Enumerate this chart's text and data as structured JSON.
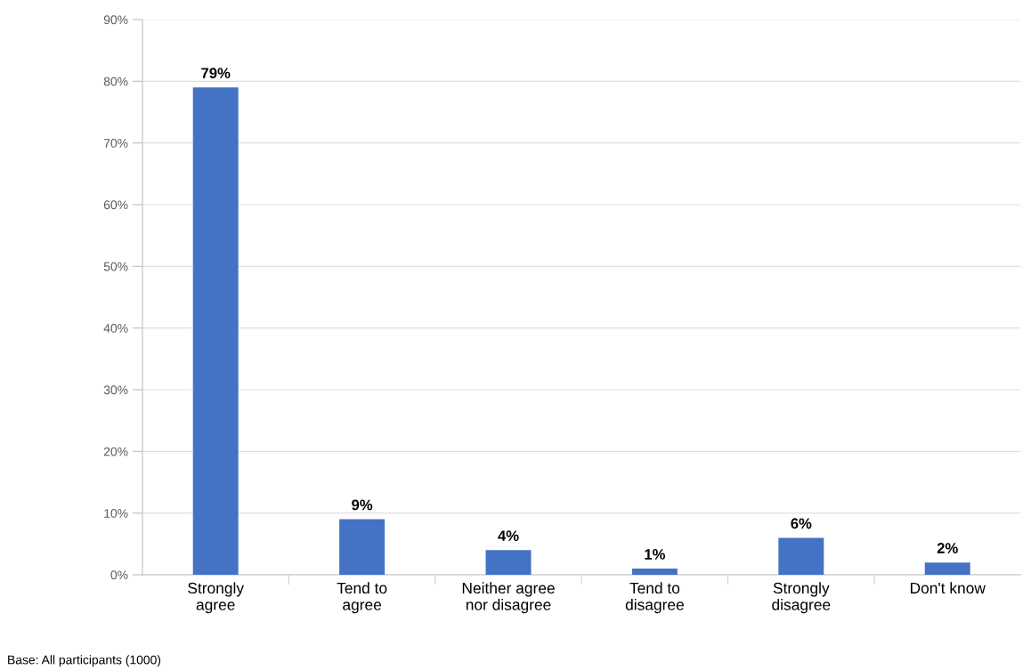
{
  "chart_data": {
    "type": "bar",
    "categories": [
      "Strongly\nagree",
      "Tend to\nagree",
      "Neither agree\nnor disagree",
      "Tend to\ndisagree",
      "Strongly\ndisagree",
      "Don't know"
    ],
    "values": [
      79,
      9,
      4,
      1,
      6,
      2
    ],
    "value_labels": [
      "79%",
      "9%",
      "4%",
      "1%",
      "6%",
      "2%"
    ],
    "color": "#4472c4",
    "ylim": [
      0,
      90
    ],
    "yticks": [
      {
        "value": 0,
        "label": "0%"
      },
      {
        "value": 10,
        "label": "10%"
      },
      {
        "value": 20,
        "label": "20%"
      },
      {
        "value": 30,
        "label": "30%"
      },
      {
        "value": 40,
        "label": "40%"
      },
      {
        "value": 50,
        "label": "50%"
      },
      {
        "value": 60,
        "label": "60%"
      },
      {
        "value": 70,
        "label": "70%"
      },
      {
        "value": 80,
        "label": "80%"
      },
      {
        "value": 90,
        "label": "90%"
      }
    ],
    "grid": "y",
    "annotations": [
      "Base: All participants (1000)"
    ]
  }
}
